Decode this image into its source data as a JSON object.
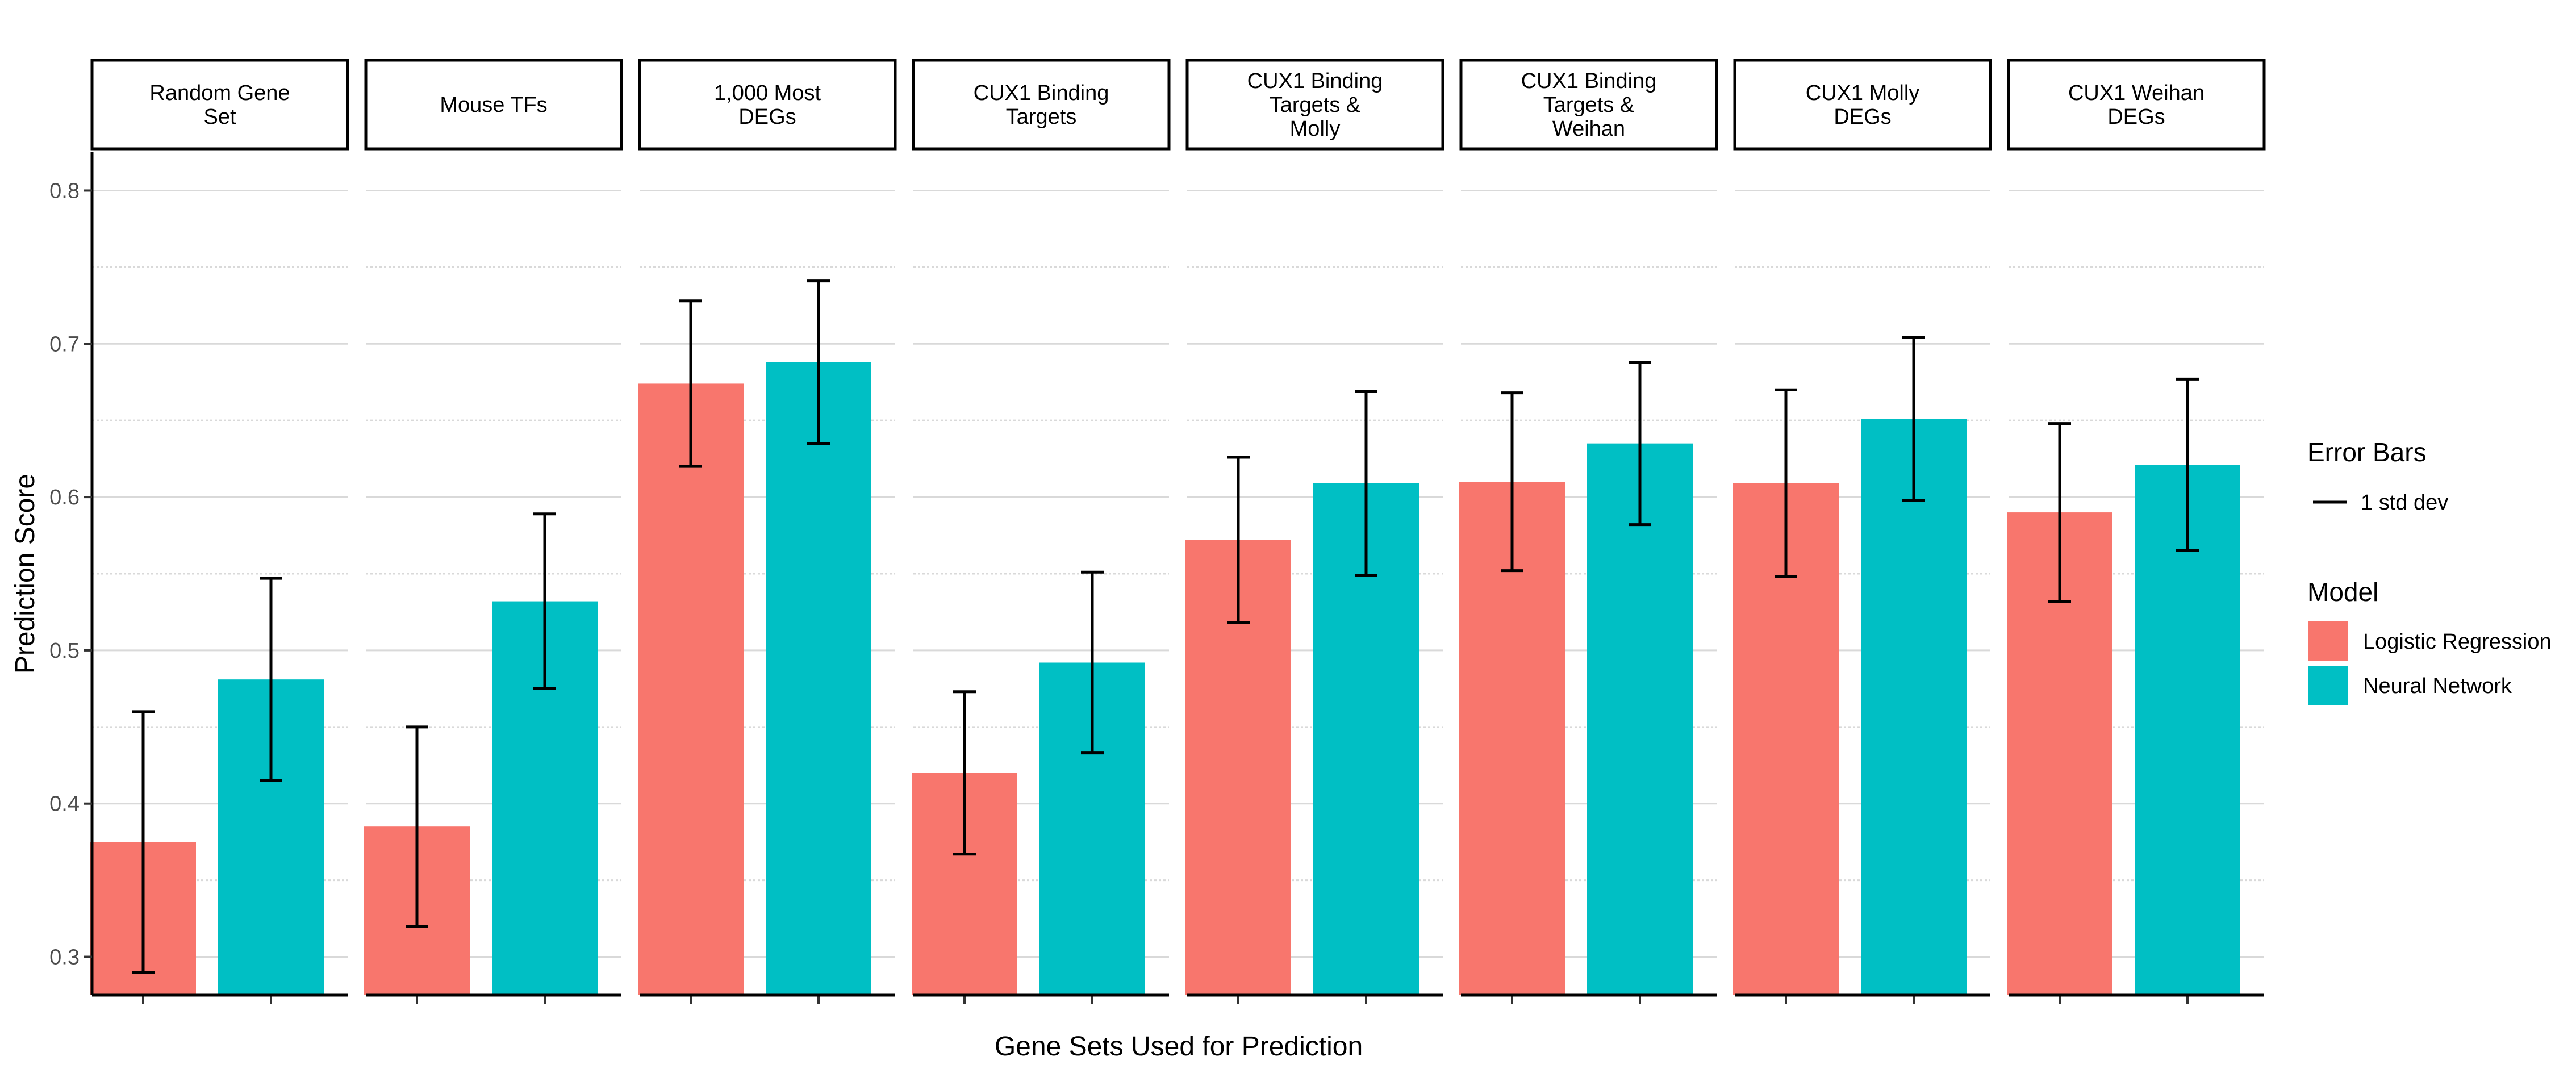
{
  "chart_data": {
    "type": "bar",
    "xlabel": "Gene Sets Used for Prediction",
    "ylabel": "Prediction Score",
    "ylim": [
      0.275,
      0.825
    ],
    "yticks": [
      0.3,
      0.4,
      0.5,
      0.6,
      0.7,
      0.8
    ],
    "ytick_labels": [
      "0.3",
      "0.4",
      "0.5",
      "0.6",
      "0.7",
      "0.8"
    ],
    "grid": "horizontal major and dotted minor gridlines",
    "legend_position": "right",
    "facets": [
      {
        "label": [
          "Random Gene",
          "Set"
        ]
      },
      {
        "label": [
          "Mouse TFs"
        ]
      },
      {
        "label": [
          "1,000 Most",
          "DEGs"
        ]
      },
      {
        "label": [
          "CUX1 Binding",
          "Targets"
        ]
      },
      {
        "label": [
          "CUX1 Binding",
          "Targets &",
          "Molly"
        ]
      },
      {
        "label": [
          "CUX1 Binding",
          "Targets &",
          "Weihan"
        ]
      },
      {
        "label": [
          "CUX1 Molly",
          "DEGs"
        ]
      },
      {
        "label": [
          "CUX1 Weihan",
          "DEGs"
        ]
      }
    ],
    "series": [
      {
        "name": "Logistic Regression",
        "color": "#F8766D",
        "values": [
          0.375,
          0.385,
          0.674,
          0.42,
          0.572,
          0.61,
          0.609,
          0.59
        ],
        "sd": [
          0.085,
          0.065,
          0.054,
          0.053,
          0.054,
          0.058,
          0.061,
          0.058
        ]
      },
      {
        "name": "Neural Network",
        "color": "#00BFC4",
        "values": [
          0.481,
          0.532,
          0.688,
          0.492,
          0.609,
          0.635,
          0.651,
          0.621
        ],
        "sd": [
          0.066,
          0.057,
          0.053,
          0.059,
          0.06,
          0.053,
          0.053,
          0.056
        ]
      }
    ],
    "legend": {
      "error_title": "Error Bars",
      "error_label": "1 std dev",
      "model_title": "Model"
    }
  }
}
